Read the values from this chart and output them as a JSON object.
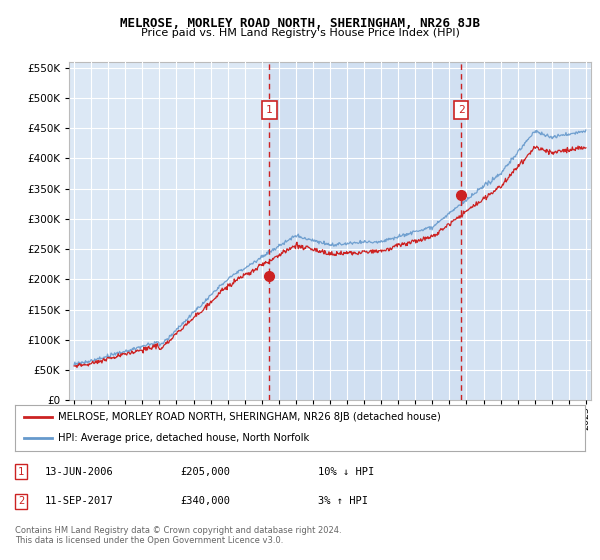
{
  "title": "MELROSE, MORLEY ROAD NORTH, SHERINGHAM, NR26 8JB",
  "subtitle": "Price paid vs. HM Land Registry's House Price Index (HPI)",
  "legend_line1": "MELROSE, MORLEY ROAD NORTH, SHERINGHAM, NR26 8JB (detached house)",
  "legend_line2": "HPI: Average price, detached house, North Norfolk",
  "annotation1_date": "13-JUN-2006",
  "annotation1_price": "£205,000",
  "annotation1_hpi": "10% ↓ HPI",
  "annotation2_date": "11-SEP-2017",
  "annotation2_price": "£340,000",
  "annotation2_hpi": "3% ↑ HPI",
  "footer1": "Contains HM Land Registry data © Crown copyright and database right 2024.",
  "footer2": "This data is licensed under the Open Government Licence v3.0.",
  "ylim_min": 0,
  "ylim_max": 560000,
  "background_color": "#dce8f5",
  "grid_color": "#ffffff",
  "line_color_hpi": "#6699cc",
  "line_color_price": "#cc2222",
  "vline_color": "#cc2222",
  "shade_color": "#c8daf0",
  "sale1_year": 2006.45,
  "sale1_price": 205000,
  "sale2_year": 2017.69,
  "sale2_price": 340000
}
